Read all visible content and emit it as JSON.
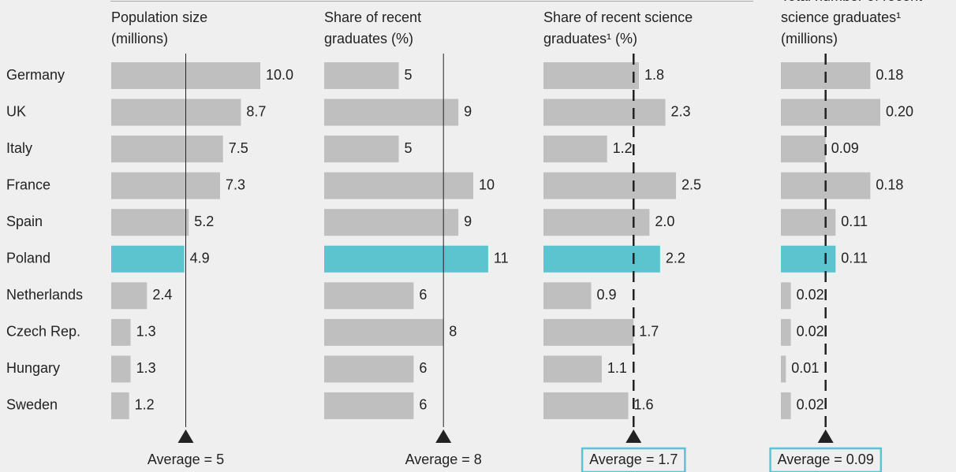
{
  "chart_data": [
    {
      "type": "bar",
      "title": [
        "Population size",
        "(millions)"
      ],
      "categories": [
        "Germany",
        "UK",
        "Italy",
        "France",
        "Spain",
        "Poland",
        "Netherlands",
        "Czech Rep.",
        "Hungary",
        "Sweden"
      ],
      "values": [
        10,
        8.7,
        7.5,
        7.3,
        5.2,
        4.9,
        2.4,
        1.3,
        1.3,
        1.2
      ],
      "value_labels": [
        "10.0",
        "8.7",
        "7.5",
        "7.3",
        "5.2",
        "4.9",
        "2.4",
        "1.3",
        "1.3",
        "1.2"
      ],
      "colors": [
        "#bfbfbf",
        "#bfbfbf",
        "#bfbfbf",
        "#bfbfbf",
        "#bfbfbf",
        "#5bc4cf",
        "#bfbfbf",
        "#bfbfbf",
        "#bfbfbf",
        "#bfbfbf"
      ],
      "average": 5,
      "average_label": "Average = 5",
      "average_style": "solid",
      "average_boxed": false
    },
    {
      "type": "bar",
      "title": [
        "Share of recent",
        "graduates (%)"
      ],
      "values": [
        5,
        9,
        5,
        10,
        9,
        11,
        6,
        8,
        6,
        6
      ],
      "colors": [
        "#bfbfbf",
        "#bfbfbf",
        "#bfbfbf",
        "#bfbfbf",
        "#bfbfbf",
        "#5bc4cf",
        "#bfbfbf",
        "#bfbfbf",
        "#bfbfbf",
        "#bfbfbf"
      ],
      "average": 8,
      "average_label": "Average = 8",
      "average_style": "solid",
      "average_boxed": false
    },
    {
      "type": "bar",
      "title": [
        "Share of recent science",
        "graduates¹ (%)"
      ],
      "values": [
        1.8,
        2.3,
        1.2,
        2.5,
        2.0,
        2.2,
        0.9,
        1.7,
        1.1,
        1.6
      ],
      "value_labels": [
        "1.8",
        "2.3",
        "1.2",
        "2.5",
        "2.0",
        "2.2",
        "0.9",
        "1.7",
        "1.1",
        "1.6"
      ],
      "colors": [
        "#bfbfbf",
        "#bfbfbf",
        "#bfbfbf",
        "#bfbfbf",
        "#bfbfbf",
        "#5bc4cf",
        "#bfbfbf",
        "#bfbfbf",
        "#bfbfbf",
        "#bfbfbf"
      ],
      "average": 1.7,
      "average_label": "Average = 1.7",
      "average_style": "dashed",
      "average_boxed": true
    },
    {
      "type": "bar",
      "title": [
        "Total number of recent",
        "science graduates¹",
        "(millions)"
      ],
      "values": [
        0.18,
        0.2,
        0.09,
        0.18,
        0.11,
        0.11,
        0.02,
        0.02,
        0.01,
        0.02
      ],
      "value_labels": [
        "0.18",
        "0.20",
        "0.09",
        "0.18",
        "0.11",
        "0.11",
        "0.02",
        "0.02",
        "0.01",
        "0.02"
      ],
      "colors": [
        "#bfbfbf",
        "#bfbfbf",
        "#bfbfbf",
        "#bfbfbf",
        "#bfbfbf",
        "#5bc4cf",
        "#bfbfbf",
        "#bfbfbf",
        "#bfbfbf",
        "#bfbfbf"
      ],
      "average": 0.09,
      "average_label": "Average = 0.09",
      "average_style": "dashed",
      "average_boxed": true
    }
  ]
}
